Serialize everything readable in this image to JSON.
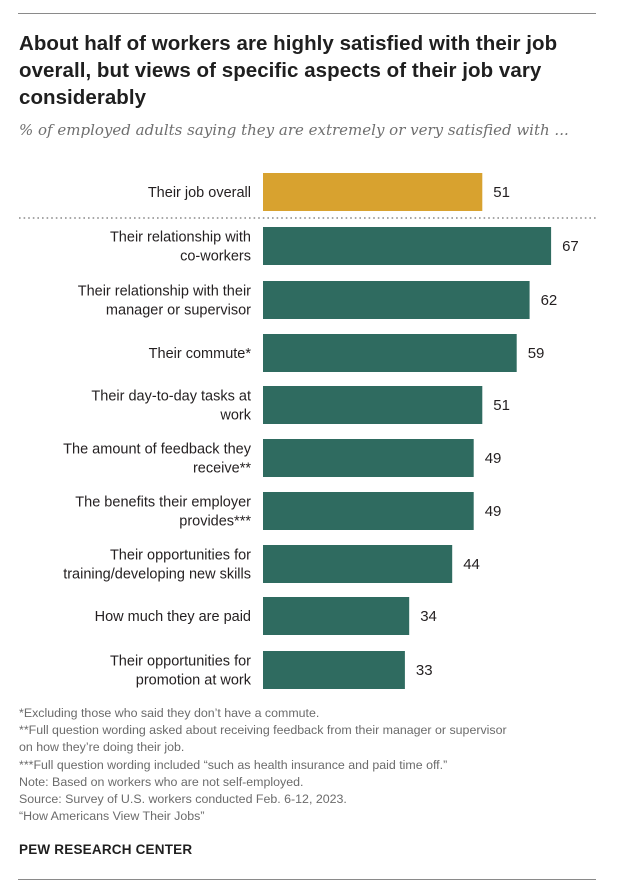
{
  "title": "About half of workers are highly satisfied with their job overall, but views of specific aspects of their job vary considerably",
  "subtitle": "% of employed adults saying they are extremely or very satisfied with ...",
  "colors": {
    "overall": "#d8a22f",
    "aspects": "#2f6b60",
    "divider": "#8a8a8a"
  },
  "chart_data": {
    "type": "bar",
    "orientation": "horizontal",
    "title": "About half of workers are highly satisfied with their job overall, but views of specific aspects of their job vary considerably",
    "subtitle": "% of employed adults saying they are extremely or very satisfied with ...",
    "xlim": [
      0,
      100
    ],
    "grid": false,
    "categories": [
      [
        "Their job overall"
      ],
      [
        "Their relationship with",
        "co-workers"
      ],
      [
        "Their relationship with their",
        "manager or supervisor"
      ],
      [
        "Their commute*"
      ],
      [
        "Their day-to-day tasks at",
        "work"
      ],
      [
        "The amount of feedback they",
        "receive**"
      ],
      [
        "The benefits their employer",
        "provides***"
      ],
      [
        "Their opportunities for",
        "training/developing new skills"
      ],
      [
        "How much they are paid"
      ],
      [
        "Their opportunities for",
        "promotion at work"
      ]
    ],
    "values": [
      51,
      67,
      62,
      59,
      51,
      49,
      49,
      44,
      34,
      33
    ],
    "highlight_index": 0,
    "divider_after_index": 0
  },
  "notes": [
    "*Excluding those who said they don’t have a commute.",
    "**Full question wording asked about receiving feedback from their manager or supervisor",
    "on how they’re doing their job.",
    "***Full question wording included “such as health insurance and paid time off.”",
    "Note: Based on workers who are not self-employed.",
    "Source: Survey of U.S. workers conducted Feb. 6-12, 2023.",
    "“How Americans View Their Jobs”"
  ],
  "brand": "PEW RESEARCH CENTER"
}
